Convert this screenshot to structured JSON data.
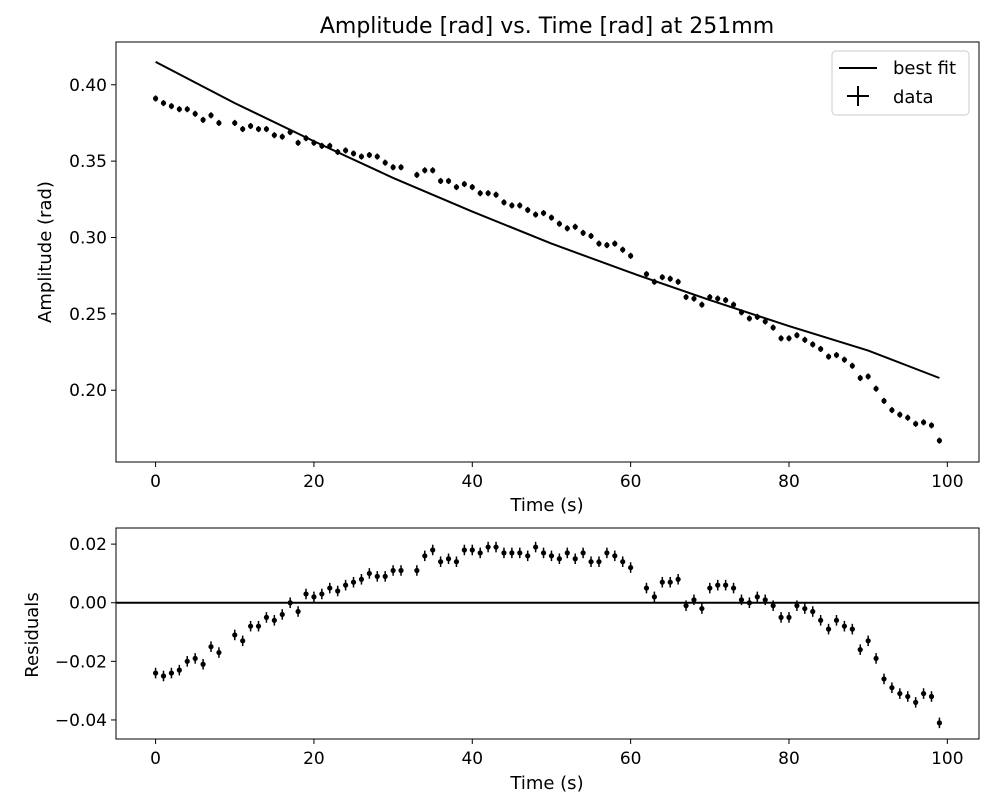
{
  "chart_data": [
    {
      "type": "line",
      "title": "Amplitude [rad] vs. Time [rad]  at 251mm",
      "xlabel": "Time (s)",
      "ylabel": "Amplitude (rad)",
      "xlim": [
        -5,
        104
      ],
      "ylim": [
        0.153,
        0.428
      ],
      "xticks": [
        0,
        20,
        40,
        60,
        80,
        100
      ],
      "yticks": [
        0.2,
        0.25,
        0.3,
        0.35,
        0.4
      ],
      "ytick_labels": [
        "0.20",
        "0.25",
        "0.30",
        "0.35",
        "0.40"
      ],
      "legend": {
        "placement": "top-right",
        "entries": [
          "best fit",
          "data"
        ]
      },
      "series": [
        {
          "name": "best fit",
          "kind": "line",
          "color": "#000000",
          "x": [
            0,
            10,
            20,
            30,
            40,
            50,
            60,
            70,
            80,
            90,
            99
          ],
          "y": [
            0.415,
            0.388,
            0.363,
            0.339,
            0.317,
            0.296,
            0.277,
            0.259,
            0.242,
            0.226,
            0.208
          ]
        },
        {
          "name": "data",
          "kind": "errorbar",
          "color": "#000000",
          "x": [
            0,
            1,
            2,
            3,
            4,
            5,
            6,
            7,
            8,
            10,
            11,
            12,
            13,
            14,
            15,
            16,
            17,
            18,
            19,
            20,
            21,
            22,
            23,
            24,
            25,
            26,
            27,
            28,
            29,
            30,
            31,
            33,
            34,
            35,
            36,
            37,
            38,
            39,
            40,
            41,
            42,
            43,
            44,
            45,
            46,
            47,
            48,
            49,
            50,
            51,
            52,
            53,
            54,
            55,
            56,
            57,
            58,
            59,
            60,
            62,
            63,
            64,
            65,
            66,
            67,
            68,
            69,
            70,
            71,
            72,
            73,
            74,
            75,
            76,
            77,
            78,
            79,
            80,
            81,
            82,
            83,
            84,
            85,
            86,
            87,
            88,
            89,
            90,
            91,
            92,
            93,
            94,
            95,
            96,
            97,
            98,
            99
          ],
          "y": [
            0.391,
            0.388,
            0.386,
            0.384,
            0.384,
            0.381,
            0.377,
            0.38,
            0.375,
            0.375,
            0.371,
            0.373,
            0.371,
            0.371,
            0.367,
            0.366,
            0.369,
            0.362,
            0.365,
            0.362,
            0.36,
            0.36,
            0.356,
            0.357,
            0.355,
            0.353,
            0.354,
            0.353,
            0.349,
            0.346,
            0.346,
            0.341,
            0.344,
            0.344,
            0.337,
            0.337,
            0.333,
            0.335,
            0.333,
            0.329,
            0.329,
            0.328,
            0.323,
            0.321,
            0.321,
            0.318,
            0.315,
            0.316,
            0.313,
            0.309,
            0.306,
            0.307,
            0.303,
            0.301,
            0.296,
            0.295,
            0.296,
            0.292,
            0.288,
            0.276,
            0.271,
            0.274,
            0.273,
            0.271,
            0.261,
            0.26,
            0.256,
            0.261,
            0.26,
            0.259,
            0.256,
            0.251,
            0.247,
            0.248,
            0.245,
            0.241,
            0.234,
            0.234,
            0.236,
            0.233,
            0.23,
            0.227,
            0.222,
            0.223,
            0.22,
            0.216,
            0.208,
            0.209,
            0.201,
            0.193,
            0.187,
            0.184,
            0.182,
            0.178,
            0.179,
            0.177,
            0.167
          ],
          "yerr": 0.002
        }
      ]
    },
    {
      "type": "scatter",
      "title": "",
      "xlabel": "Time (s)",
      "ylabel": "Residuals",
      "xlim": [
        -5,
        104
      ],
      "ylim": [
        -0.0465,
        0.0255
      ],
      "xticks": [
        0,
        20,
        40,
        60,
        80,
        100
      ],
      "yticks": [
        -0.04,
        -0.02,
        0.0,
        0.02
      ],
      "ytick_labels": [
        "−0.04",
        "−0.02",
        "0.00",
        "0.02"
      ],
      "reference_line": 0.0,
      "series": [
        {
          "kind": "errorbar",
          "color": "#000000",
          "x": [
            0,
            1,
            2,
            3,
            4,
            5,
            6,
            7,
            8,
            10,
            11,
            12,
            13,
            14,
            15,
            16,
            17,
            18,
            19,
            20,
            21,
            22,
            23,
            24,
            25,
            26,
            27,
            28,
            29,
            30,
            31,
            33,
            34,
            35,
            36,
            37,
            38,
            39,
            40,
            41,
            42,
            43,
            44,
            45,
            46,
            47,
            48,
            49,
            50,
            51,
            52,
            53,
            54,
            55,
            56,
            57,
            58,
            59,
            60,
            62,
            63,
            64,
            65,
            66,
            67,
            68,
            69,
            70,
            71,
            72,
            73,
            74,
            75,
            76,
            77,
            78,
            79,
            80,
            81,
            82,
            83,
            84,
            85,
            86,
            87,
            88,
            89,
            90,
            91,
            92,
            93,
            94,
            95,
            96,
            97,
            98,
            99
          ],
          "y": [
            -0.024,
            -0.025,
            -0.024,
            -0.023,
            -0.02,
            -0.019,
            -0.021,
            -0.015,
            -0.017,
            -0.011,
            -0.013,
            -0.008,
            -0.008,
            -0.005,
            -0.006,
            -0.004,
            0.0,
            -0.003,
            0.003,
            0.002,
            0.003,
            0.005,
            0.004,
            0.006,
            0.007,
            0.008,
            0.01,
            0.009,
            0.009,
            0.011,
            0.011,
            0.011,
            0.016,
            0.018,
            0.014,
            0.015,
            0.014,
            0.018,
            0.018,
            0.017,
            0.019,
            0.019,
            0.017,
            0.017,
            0.017,
            0.016,
            0.019,
            0.017,
            0.016,
            0.015,
            0.017,
            0.015,
            0.017,
            0.014,
            0.014,
            0.017,
            0.016,
            0.014,
            0.012,
            0.005,
            0.002,
            0.007,
            0.007,
            0.008,
            -0.001,
            0.001,
            -0.002,
            0.005,
            0.006,
            0.006,
            0.005,
            0.001,
            0.0,
            0.002,
            0.001,
            -0.001,
            -0.005,
            -0.005,
            -0.001,
            -0.002,
            -0.003,
            -0.006,
            -0.009,
            -0.006,
            -0.008,
            -0.009,
            -0.016,
            -0.013,
            -0.019,
            -0.026,
            -0.029,
            -0.031,
            -0.032,
            -0.034,
            -0.031,
            -0.032,
            -0.041
          ],
          "yerr": 0.0018
        }
      ]
    }
  ]
}
